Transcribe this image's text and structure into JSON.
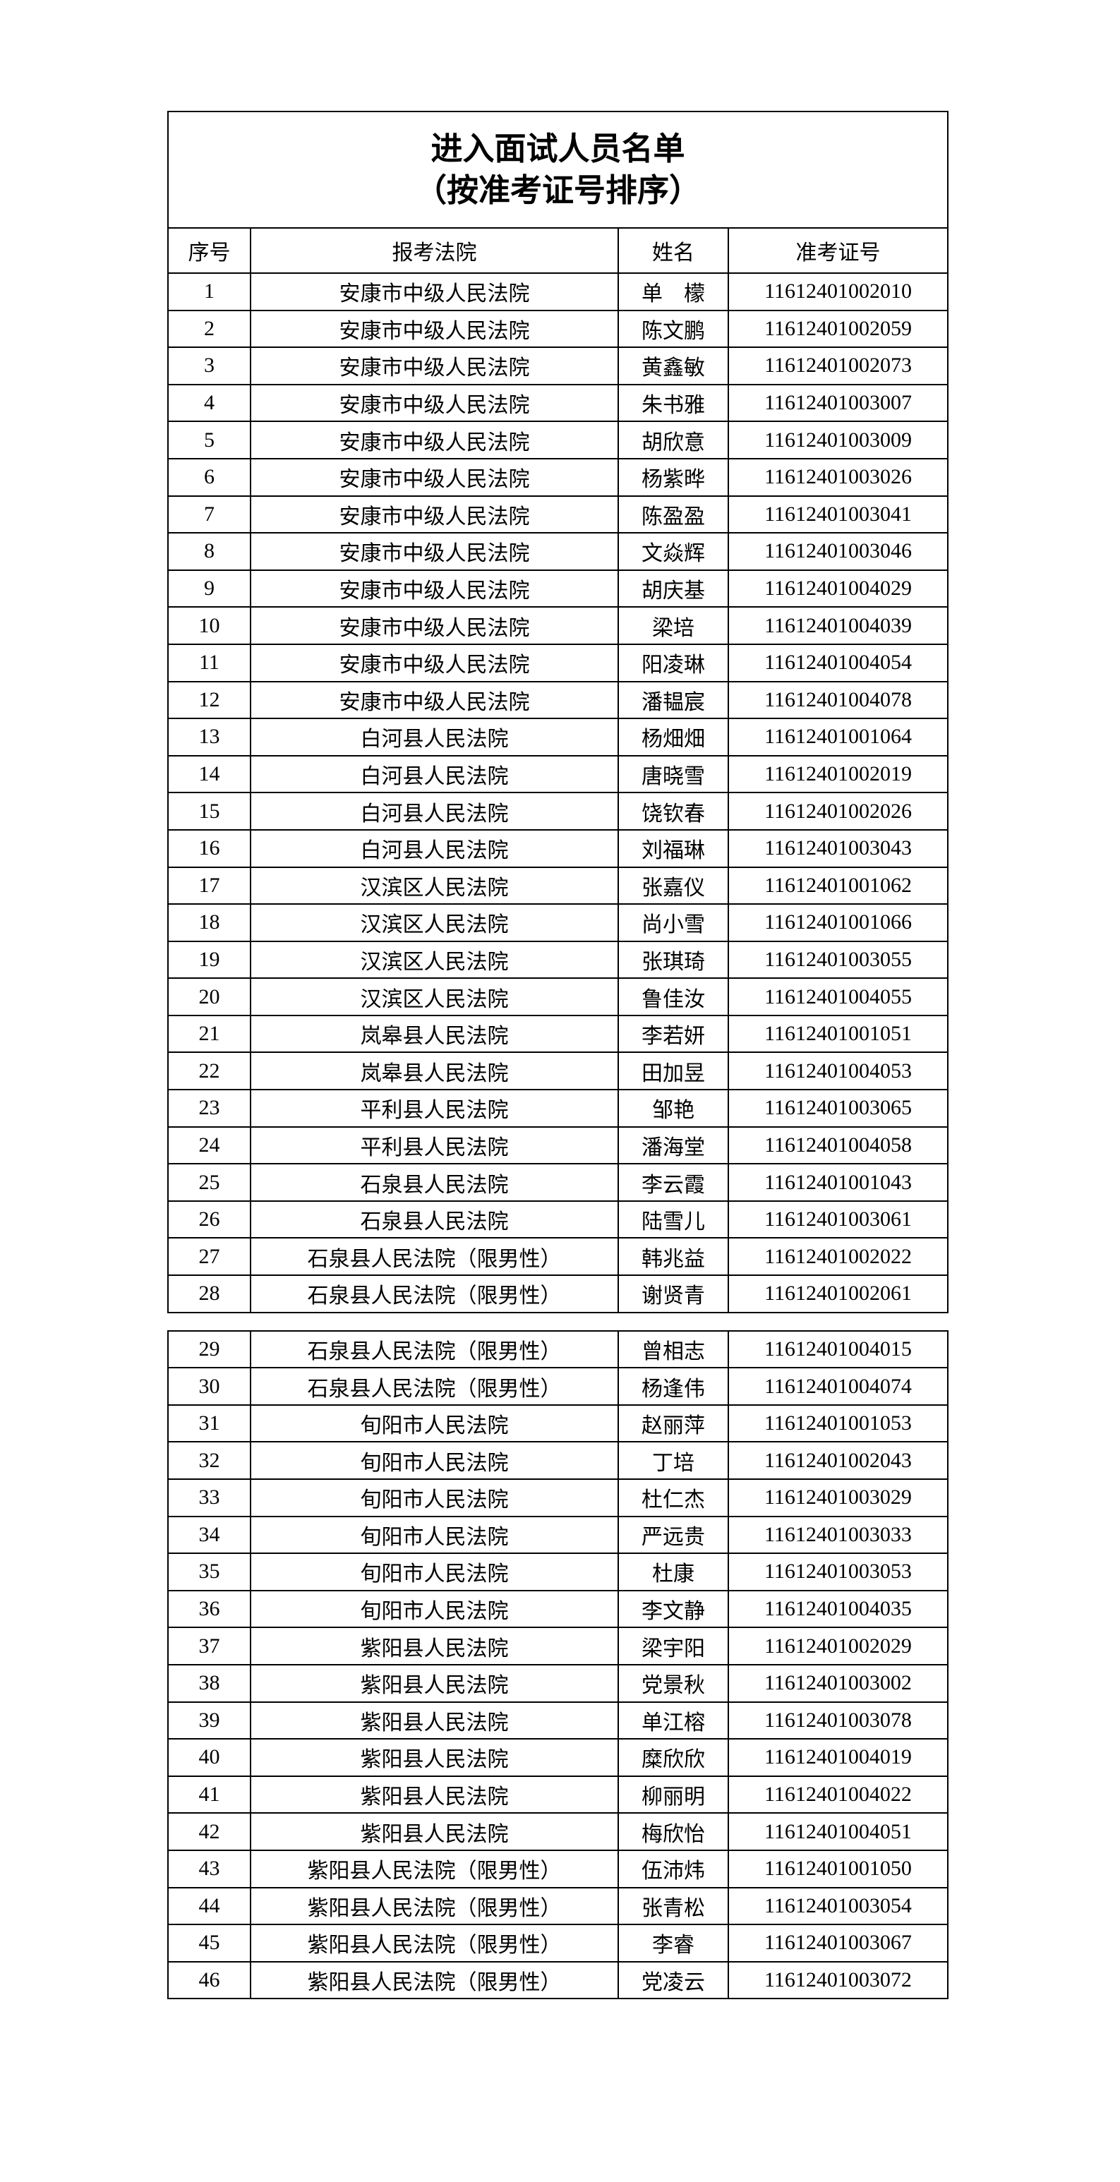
{
  "page": {
    "title_line1": "进入面试人员名单",
    "title_line2": "（按准考证号排序）"
  },
  "columns": [
    "序号",
    "报考法院",
    "姓名",
    "准考证号"
  ],
  "tables": [
    {
      "rows": [
        {
          "no": "1",
          "court": "安康市中级人民法院",
          "name": "单　檬",
          "ticket": "11612401002010"
        },
        {
          "no": "2",
          "court": "安康市中级人民法院",
          "name": "陈文鹏",
          "ticket": "11612401002059"
        },
        {
          "no": "3",
          "court": "安康市中级人民法院",
          "name": "黄鑫敏",
          "ticket": "11612401002073"
        },
        {
          "no": "4",
          "court": "安康市中级人民法院",
          "name": "朱书雅",
          "ticket": "11612401003007"
        },
        {
          "no": "5",
          "court": "安康市中级人民法院",
          "name": "胡欣意",
          "ticket": "11612401003009"
        },
        {
          "no": "6",
          "court": "安康市中级人民法院",
          "name": "杨紫晔",
          "ticket": "11612401003026"
        },
        {
          "no": "7",
          "court": "安康市中级人民法院",
          "name": "陈盈盈",
          "ticket": "11612401003041"
        },
        {
          "no": "8",
          "court": "安康市中级人民法院",
          "name": "文焱辉",
          "ticket": "11612401003046"
        },
        {
          "no": "9",
          "court": "安康市中级人民法院",
          "name": "胡庆基",
          "ticket": "11612401004029"
        },
        {
          "no": "10",
          "court": "安康市中级人民法院",
          "name": "梁培",
          "ticket": "11612401004039"
        },
        {
          "no": "11",
          "court": "安康市中级人民法院",
          "name": "阳凌琳",
          "ticket": "11612401004054"
        },
        {
          "no": "12",
          "court": "安康市中级人民法院",
          "name": "潘韫宸",
          "ticket": "11612401004078"
        },
        {
          "no": "13",
          "court": "白河县人民法院",
          "name": "杨畑畑",
          "ticket": "11612401001064"
        },
        {
          "no": "14",
          "court": "白河县人民法院",
          "name": "唐晓雪",
          "ticket": "11612401002019"
        },
        {
          "no": "15",
          "court": "白河县人民法院",
          "name": "饶钦春",
          "ticket": "11612401002026"
        },
        {
          "no": "16",
          "court": "白河县人民法院",
          "name": "刘福琳",
          "ticket": "11612401003043"
        },
        {
          "no": "17",
          "court": "汉滨区人民法院",
          "name": "张嘉仪",
          "ticket": "11612401001062"
        },
        {
          "no": "18",
          "court": "汉滨区人民法院",
          "name": "尚小雪",
          "ticket": "11612401001066"
        },
        {
          "no": "19",
          "court": "汉滨区人民法院",
          "name": "张琪琦",
          "ticket": "11612401003055"
        },
        {
          "no": "20",
          "court": "汉滨区人民法院",
          "name": "鲁佳汝",
          "ticket": "11612401004055"
        },
        {
          "no": "21",
          "court": "岚皋县人民法院",
          "name": "李若妍",
          "ticket": "11612401001051"
        },
        {
          "no": "22",
          "court": "岚皋县人民法院",
          "name": "田加昱",
          "ticket": "11612401004053"
        },
        {
          "no": "23",
          "court": "平利县人民法院",
          "name": "邹艳",
          "ticket": "11612401003065"
        },
        {
          "no": "24",
          "court": "平利县人民法院",
          "name": "潘海堂",
          "ticket": "11612401004058"
        },
        {
          "no": "25",
          "court": "石泉县人民法院",
          "name": "李云霞",
          "ticket": "11612401001043"
        },
        {
          "no": "26",
          "court": "石泉县人民法院",
          "name": "陆雪儿",
          "ticket": "11612401003061"
        },
        {
          "no": "27",
          "court": "石泉县人民法院（限男性）",
          "name": "韩兆益",
          "ticket": "11612401002022"
        },
        {
          "no": "28",
          "court": "石泉县人民法院（限男性）",
          "name": "谢贤青",
          "ticket": "11612401002061"
        }
      ]
    },
    {
      "rows": [
        {
          "no": "29",
          "court": "石泉县人民法院（限男性）",
          "name": "曾相志",
          "ticket": "11612401004015"
        },
        {
          "no": "30",
          "court": "石泉县人民法院（限男性）",
          "name": "杨逢伟",
          "ticket": "11612401004074"
        },
        {
          "no": "31",
          "court": "旬阳市人民法院",
          "name": "赵丽萍",
          "ticket": "11612401001053"
        },
        {
          "no": "32",
          "court": "旬阳市人民法院",
          "name": "丁培",
          "ticket": "11612401002043"
        },
        {
          "no": "33",
          "court": "旬阳市人民法院",
          "name": "杜仁杰",
          "ticket": "11612401003029"
        },
        {
          "no": "34",
          "court": "旬阳市人民法院",
          "name": "严远贵",
          "ticket": "11612401003033"
        },
        {
          "no": "35",
          "court": "旬阳市人民法院",
          "name": "杜康",
          "ticket": "11612401003053"
        },
        {
          "no": "36",
          "court": "旬阳市人民法院",
          "name": "李文静",
          "ticket": "11612401004035"
        },
        {
          "no": "37",
          "court": "紫阳县人民法院",
          "name": "梁宇阳",
          "ticket": "11612401002029"
        },
        {
          "no": "38",
          "court": "紫阳县人民法院",
          "name": "党景秋",
          "ticket": "11612401003002"
        },
        {
          "no": "39",
          "court": "紫阳县人民法院",
          "name": "单江榕",
          "ticket": "11612401003078"
        },
        {
          "no": "40",
          "court": "紫阳县人民法院",
          "name": "糜欣欣",
          "ticket": "11612401004019"
        },
        {
          "no": "41",
          "court": "紫阳县人民法院",
          "name": "柳丽明",
          "ticket": "11612401004022"
        },
        {
          "no": "42",
          "court": "紫阳县人民法院",
          "name": "梅欣怡",
          "ticket": "11612401004051"
        },
        {
          "no": "43",
          "court": "紫阳县人民法院（限男性）",
          "name": "伍沛炜",
          "ticket": "11612401001050"
        },
        {
          "no": "44",
          "court": "紫阳县人民法院（限男性）",
          "name": "张青松",
          "ticket": "11612401003054"
        },
        {
          "no": "45",
          "court": "紫阳县人民法院（限男性）",
          "name": "李睿",
          "ticket": "11612401003067"
        },
        {
          "no": "46",
          "court": "紫阳县人民法院（限男性）",
          "name": "党凌云",
          "ticket": "11612401003072"
        }
      ]
    }
  ]
}
